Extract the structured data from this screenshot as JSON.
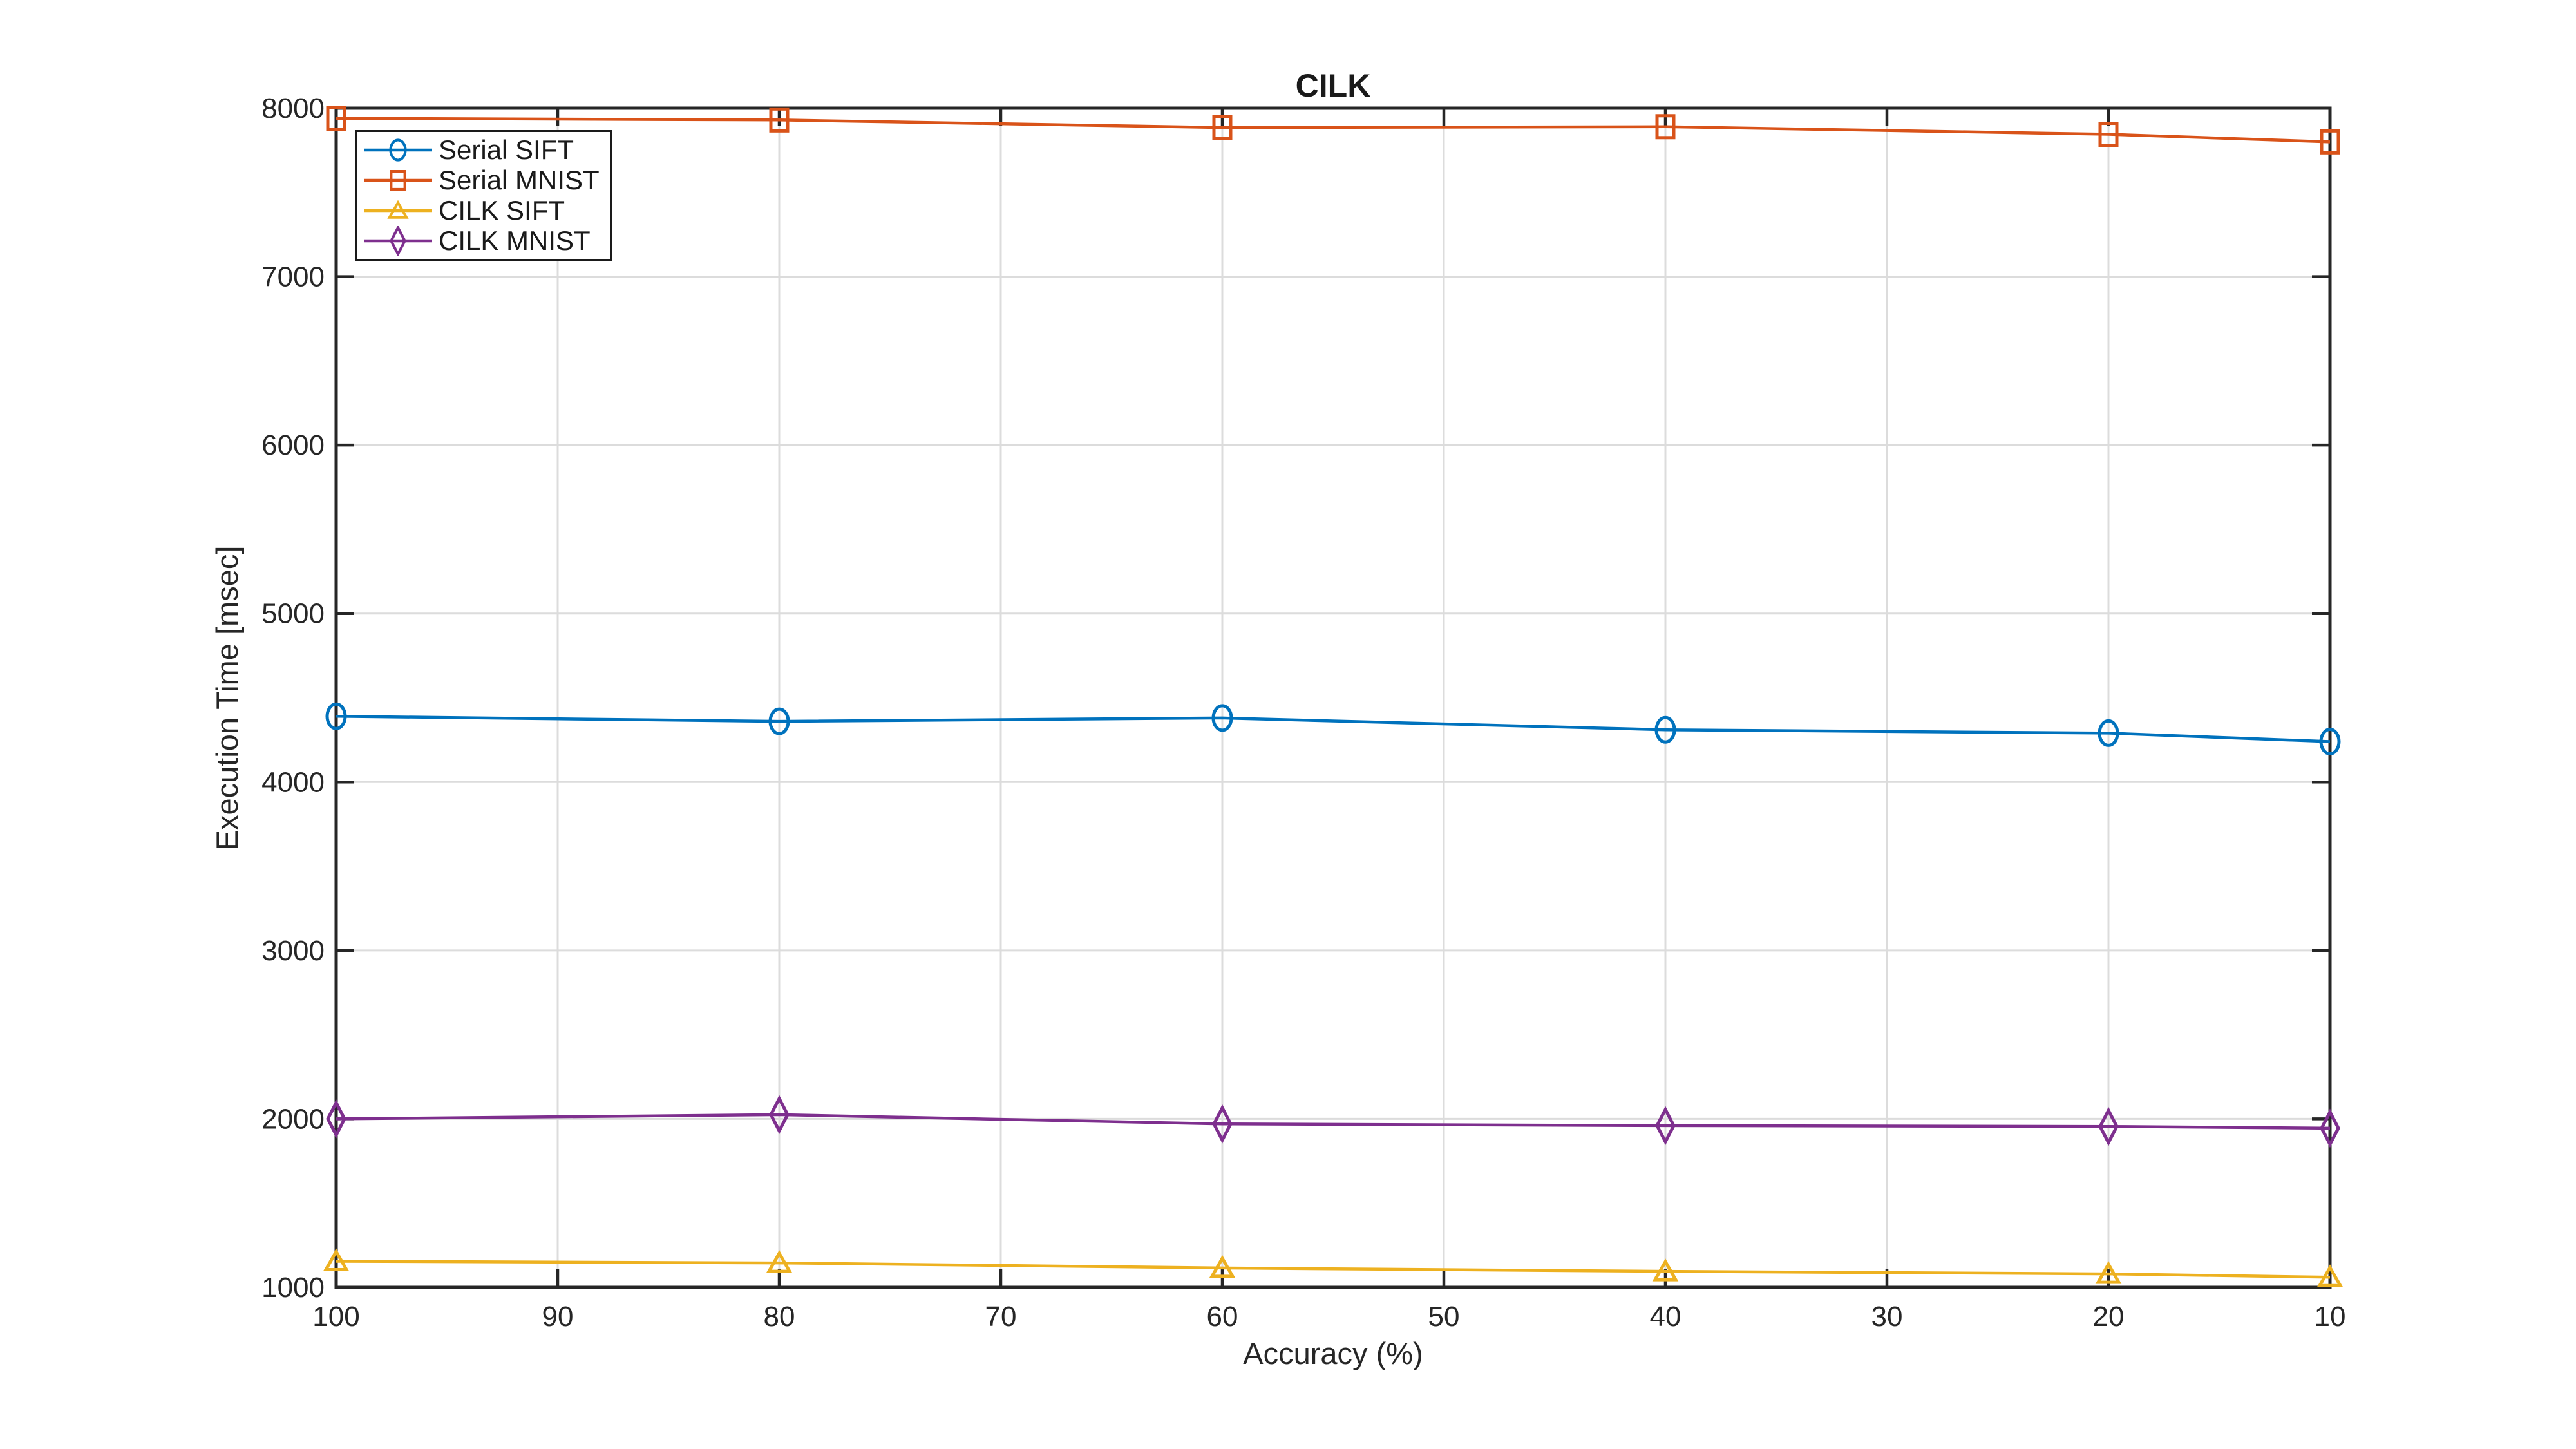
{
  "chart_data": {
    "type": "line",
    "title": "CILK",
    "xlabel": "Accuracy (%)",
    "ylabel": "Execution Time [msec]",
    "x": [
      100,
      80,
      60,
      40,
      20,
      10
    ],
    "x_axis": {
      "label": "Accuracy (%)",
      "min": 100,
      "max": 10,
      "reversed": true,
      "ticks": [
        100,
        90,
        80,
        70,
        60,
        50,
        40,
        30,
        20,
        10
      ]
    },
    "y_axis": {
      "label": "Execution Time [msec]",
      "min": 1000,
      "max": 8000,
      "ticks": [
        1000,
        2000,
        3000,
        4000,
        5000,
        6000,
        7000,
        8000
      ]
    },
    "grid": true,
    "legend": {
      "position": "top-left-inside",
      "border": true
    },
    "series": [
      {
        "name": "Serial SIFT",
        "color": "#0072BD",
        "marker": "circle",
        "values": [
          4390,
          4360,
          4380,
          4310,
          4290,
          4240
        ]
      },
      {
        "name": "Serial MNIST",
        "color": "#D95319",
        "marker": "square",
        "values": [
          7940,
          7930,
          7885,
          7890,
          7845,
          7800
        ]
      },
      {
        "name": "CILK SIFT",
        "color": "#EDB120",
        "marker": "triangle",
        "values": [
          1155,
          1145,
          1115,
          1095,
          1080,
          1060
        ]
      },
      {
        "name": "CILK MNIST",
        "color": "#7E2F8E",
        "marker": "diamond",
        "values": [
          2000,
          2025,
          1970,
          1960,
          1955,
          1945
        ]
      }
    ],
    "colors": {
      "axis": "#262626",
      "grid": "#dcdcdc",
      "background": "#ffffff",
      "title": "#1a1a1a"
    }
  }
}
